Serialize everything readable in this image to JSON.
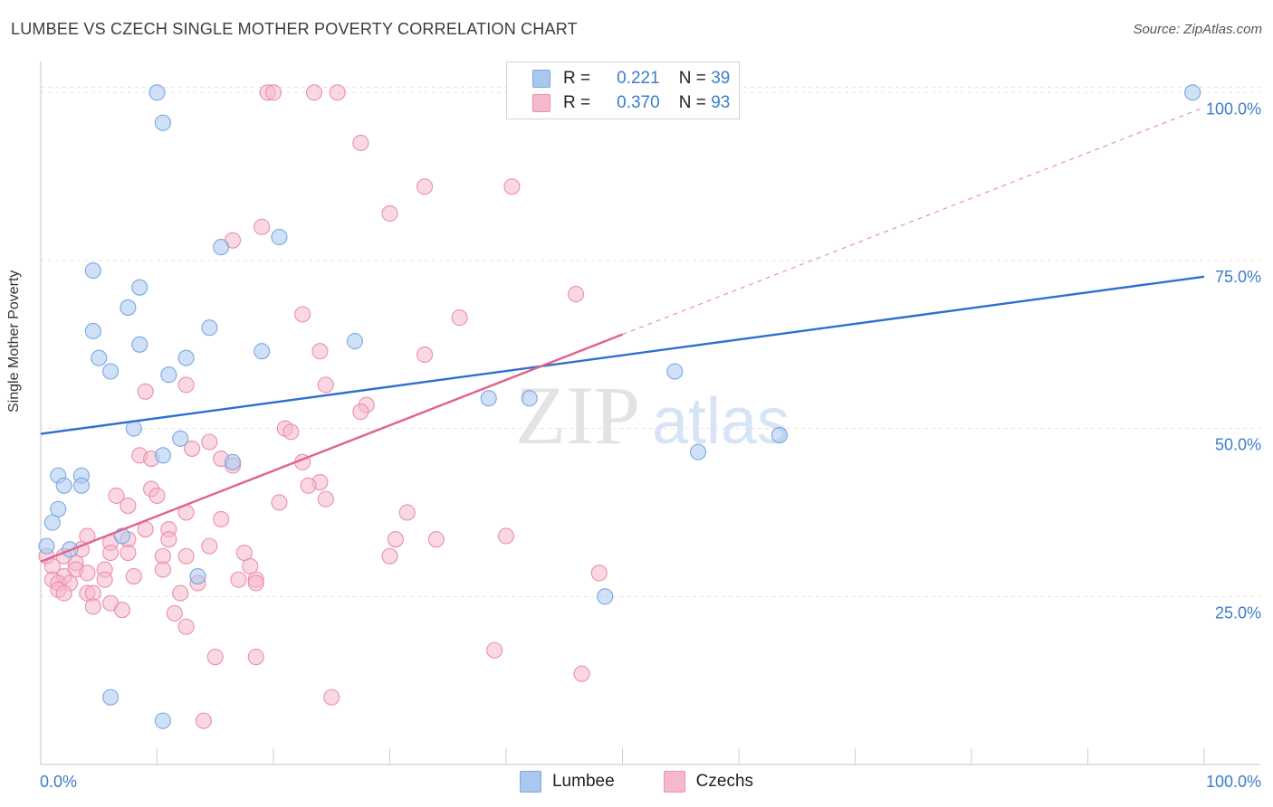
{
  "header": {
    "title": "LUMBEE VS CZECH SINGLE MOTHER POVERTY CORRELATION CHART",
    "source": "Source: ZipAtlas.com"
  },
  "legend": {
    "rows": [
      {
        "r_label": "R =",
        "r_value": "0.221",
        "n_label": "N =",
        "n_value": "39"
      },
      {
        "r_label": "R =",
        "r_value": "0.370",
        "n_label": "N =",
        "n_value": "93"
      }
    ]
  },
  "bottom_legend": [
    "Lumbee",
    "Czechs"
  ],
  "colors": {
    "lumbee_fill": "#a9c8f0",
    "lumbee_stroke": "#7aa7e0",
    "lumbee_line": "#2f6fcf",
    "czech_fill": "#f6b8cb",
    "czech_stroke": "#eb8fac",
    "czech_line": "#e0628f",
    "tick_label": "#3d7cc9"
  },
  "chart_data": {
    "type": "scatter",
    "title": "LUMBEE VS CZECH SINGLE MOTHER POVERTY CORRELATION CHART",
    "xlabel": "",
    "ylabel": "Single Mother Poverty",
    "xlim": [
      0,
      100
    ],
    "ylim": [
      0,
      103
    ],
    "x_tick_labels": [
      "0.0%",
      "100.0%"
    ],
    "y_ticks": [
      25,
      50,
      75,
      100
    ],
    "y_tick_labels": [
      "25.0%",
      "50.0%",
      "75.0%",
      "100.0%"
    ],
    "grid": true,
    "legend_position": "top-center",
    "watermark": "ZIPatlas",
    "series": [
      {
        "name": "Lumbee",
        "R": 0.221,
        "N": 39,
        "trend": {
          "x": [
            0,
            100
          ],
          "y": [
            49.2,
            72.6
          ]
        },
        "points": [
          [
            10,
            100
          ],
          [
            10.5,
            95.5
          ],
          [
            99,
            100
          ],
          [
            20.5,
            78.5
          ],
          [
            15.5,
            77
          ],
          [
            4.5,
            73.5
          ],
          [
            8.5,
            71
          ],
          [
            7.5,
            68
          ],
          [
            4.5,
            64.5
          ],
          [
            14.5,
            65
          ],
          [
            19,
            61.5
          ],
          [
            27,
            63
          ],
          [
            5,
            60.5
          ],
          [
            8.5,
            62.5
          ],
          [
            12.5,
            60.5
          ],
          [
            6,
            58.5
          ],
          [
            11,
            58
          ],
          [
            54.5,
            58.5
          ],
          [
            38.5,
            54.5
          ],
          [
            42,
            54.5
          ],
          [
            8,
            50
          ],
          [
            12,
            48.5
          ],
          [
            63.5,
            49
          ],
          [
            10.5,
            46
          ],
          [
            16.5,
            45
          ],
          [
            56.5,
            46.5
          ],
          [
            1.5,
            43
          ],
          [
            3.5,
            43
          ],
          [
            2,
            41.5
          ],
          [
            3.5,
            41.5
          ],
          [
            1.5,
            38
          ],
          [
            1,
            36
          ],
          [
            0.5,
            32.5
          ],
          [
            2.5,
            32
          ],
          [
            7,
            34
          ],
          [
            13.5,
            28
          ],
          [
            48.5,
            25
          ],
          [
            6,
            10
          ],
          [
            10.5,
            6.5
          ]
        ]
      },
      {
        "name": "Czechs",
        "R": 0.37,
        "N": 93,
        "trend": {
          "x": [
            0,
            50
          ],
          "y": [
            30.2,
            64
          ]
        },
        "trend_dashed": {
          "x": [
            50,
            100
          ],
          "y": [
            64,
            97.8
          ]
        },
        "points": [
          [
            19.5,
            100
          ],
          [
            20,
            100
          ],
          [
            23.5,
            100
          ],
          [
            25.5,
            100
          ],
          [
            27.5,
            92.5
          ],
          [
            33,
            86
          ],
          [
            40.5,
            86
          ],
          [
            30,
            82
          ],
          [
            19,
            80
          ],
          [
            16.5,
            78
          ],
          [
            46,
            70
          ],
          [
            22.5,
            67
          ],
          [
            36,
            66.5
          ],
          [
            24,
            61.5
          ],
          [
            33,
            61
          ],
          [
            24.5,
            56.5
          ],
          [
            12.5,
            56.5
          ],
          [
            9,
            55.5
          ],
          [
            28,
            53.5
          ],
          [
            27.5,
            52.5
          ],
          [
            21,
            50
          ],
          [
            21.5,
            49.5
          ],
          [
            14.5,
            48
          ],
          [
            13,
            47
          ],
          [
            8.5,
            46
          ],
          [
            9.5,
            45.5
          ],
          [
            15.5,
            45.5
          ],
          [
            22.5,
            45
          ],
          [
            16.5,
            44.5
          ],
          [
            24,
            42
          ],
          [
            9.5,
            41
          ],
          [
            23,
            41.5
          ],
          [
            6.5,
            40
          ],
          [
            10,
            40
          ],
          [
            24.5,
            39.5
          ],
          [
            20.5,
            39
          ],
          [
            7.5,
            38.5
          ],
          [
            12.5,
            37.5
          ],
          [
            31.5,
            37.5
          ],
          [
            15.5,
            36.5
          ],
          [
            9,
            35
          ],
          [
            11,
            35
          ],
          [
            4,
            34
          ],
          [
            11,
            33.5
          ],
          [
            7.5,
            33.5
          ],
          [
            30.5,
            33.5
          ],
          [
            34,
            33.5
          ],
          [
            40,
            34
          ],
          [
            6,
            33
          ],
          [
            14.5,
            32.5
          ],
          [
            3.5,
            32
          ],
          [
            6,
            31.5
          ],
          [
            7.5,
            31.5
          ],
          [
            17.5,
            31.5
          ],
          [
            12.5,
            31
          ],
          [
            10.5,
            31
          ],
          [
            30,
            31
          ],
          [
            0.5,
            31
          ],
          [
            3,
            30
          ],
          [
            1,
            29.5
          ],
          [
            3,
            29
          ],
          [
            5.5,
            29
          ],
          [
            18,
            29.5
          ],
          [
            4,
            28.5
          ],
          [
            2,
            28
          ],
          [
            1,
            27.5
          ],
          [
            5.5,
            27.5
          ],
          [
            17,
            27.5
          ],
          [
            18.5,
            27.5
          ],
          [
            1.5,
            27
          ],
          [
            2.5,
            27
          ],
          [
            13.5,
            27
          ],
          [
            18.5,
            27
          ],
          [
            1.5,
            26
          ],
          [
            2,
            25.5
          ],
          [
            4,
            25.5
          ],
          [
            4.5,
            25.5
          ],
          [
            12,
            25.5
          ],
          [
            6,
            24
          ],
          [
            4.5,
            23.5
          ],
          [
            7,
            23
          ],
          [
            11.5,
            22.5
          ],
          [
            12.5,
            20.5
          ],
          [
            48,
            28.5
          ],
          [
            39,
            17
          ],
          [
            15,
            16
          ],
          [
            18.5,
            16
          ],
          [
            46.5,
            13.5
          ],
          [
            25,
            10
          ],
          [
            14,
            6.5
          ],
          [
            2,
            31
          ],
          [
            8,
            28
          ],
          [
            10.5,
            29
          ]
        ]
      }
    ]
  }
}
